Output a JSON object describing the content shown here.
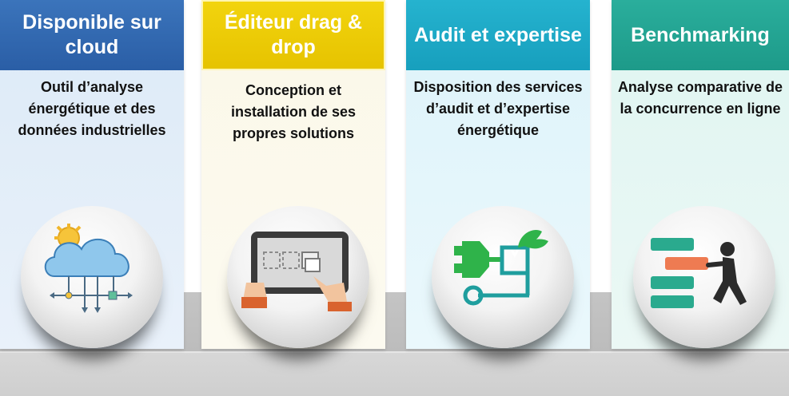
{
  "cards": [
    {
      "title": "Disponible sur cloud",
      "description": "Outil d’analyse énergétique  et des données industrielles",
      "icon": "cloud-network-icon",
      "color": "#2a5ea6"
    },
    {
      "title": "Éditeur drag & drop",
      "description": "Conception et installation de ses propres solutions",
      "icon": "tablet-drag-drop-icon",
      "color": "#e6c300"
    },
    {
      "title": "Audit et expertise",
      "description": "Disposition des services d’audit et d’expertise énergétique",
      "icon": "green-energy-plug-icon",
      "color": "#179fbd"
    },
    {
      "title": "Benchmarking",
      "description": "Analyse comparative de la concurrence en ligne",
      "icon": "benchmark-push-icon",
      "color": "#1d9a89"
    }
  ]
}
